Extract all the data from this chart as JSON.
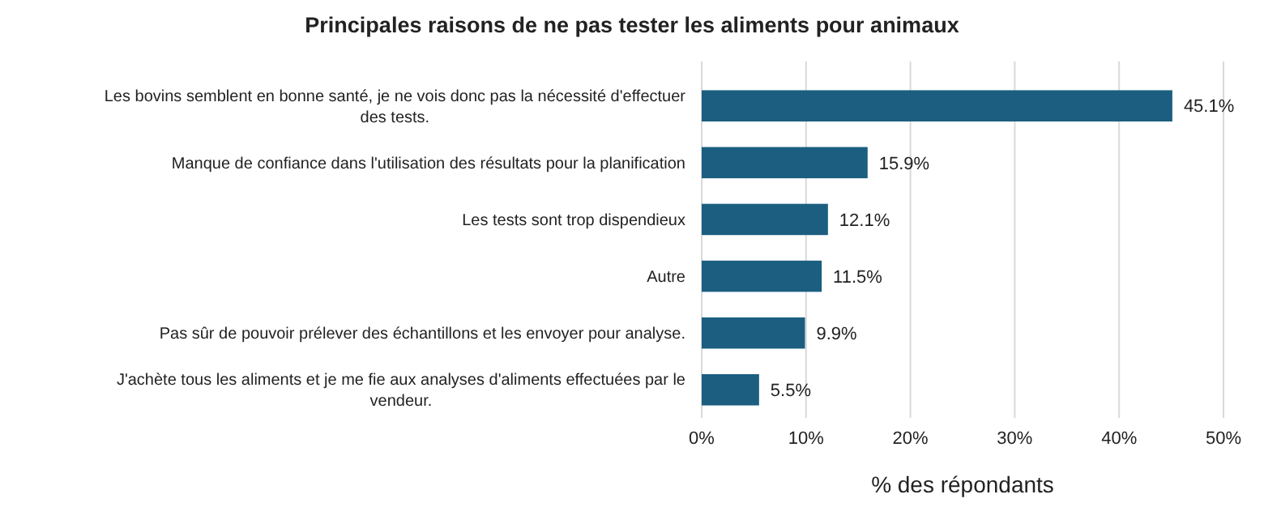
{
  "chart_data": {
    "type": "bar",
    "orientation": "horizontal",
    "title": "Principales raisons de ne pas tester les aliments pour animaux",
    "xlabel": "% des répondants",
    "categories": [
      "Les bovins semblent en bonne santé, je ne vois donc pas la nécessité d'effectuer des tests.",
      "Manque de confiance dans l'utilisation des résultats pour la planification",
      "Les tests sont trop dispendieux",
      "Autre",
      "Pas sûr de pouvoir prélever des échantillons et les envoyer pour analyse.",
      "J'achète tous les aliments et je me fie aux analyses d'aliments effectuées par le vendeur."
    ],
    "values": [
      45.1,
      15.9,
      12.1,
      11.5,
      9.9,
      5.5
    ],
    "value_labels": [
      "45.1%",
      "15.9%",
      "12.1%",
      "11.5%",
      "9.9%",
      "5.5%"
    ],
    "color": "#1b5e80",
    "xlim": [
      0,
      50
    ],
    "xticks": [
      {
        "value": 0,
        "label": "0%"
      },
      {
        "value": 10,
        "label": "10%"
      },
      {
        "value": 20,
        "label": "20%"
      },
      {
        "value": 30,
        "label": "30%"
      },
      {
        "value": 40,
        "label": "40%"
      },
      {
        "value": 50,
        "label": "50%"
      }
    ],
    "grid": "x"
  }
}
